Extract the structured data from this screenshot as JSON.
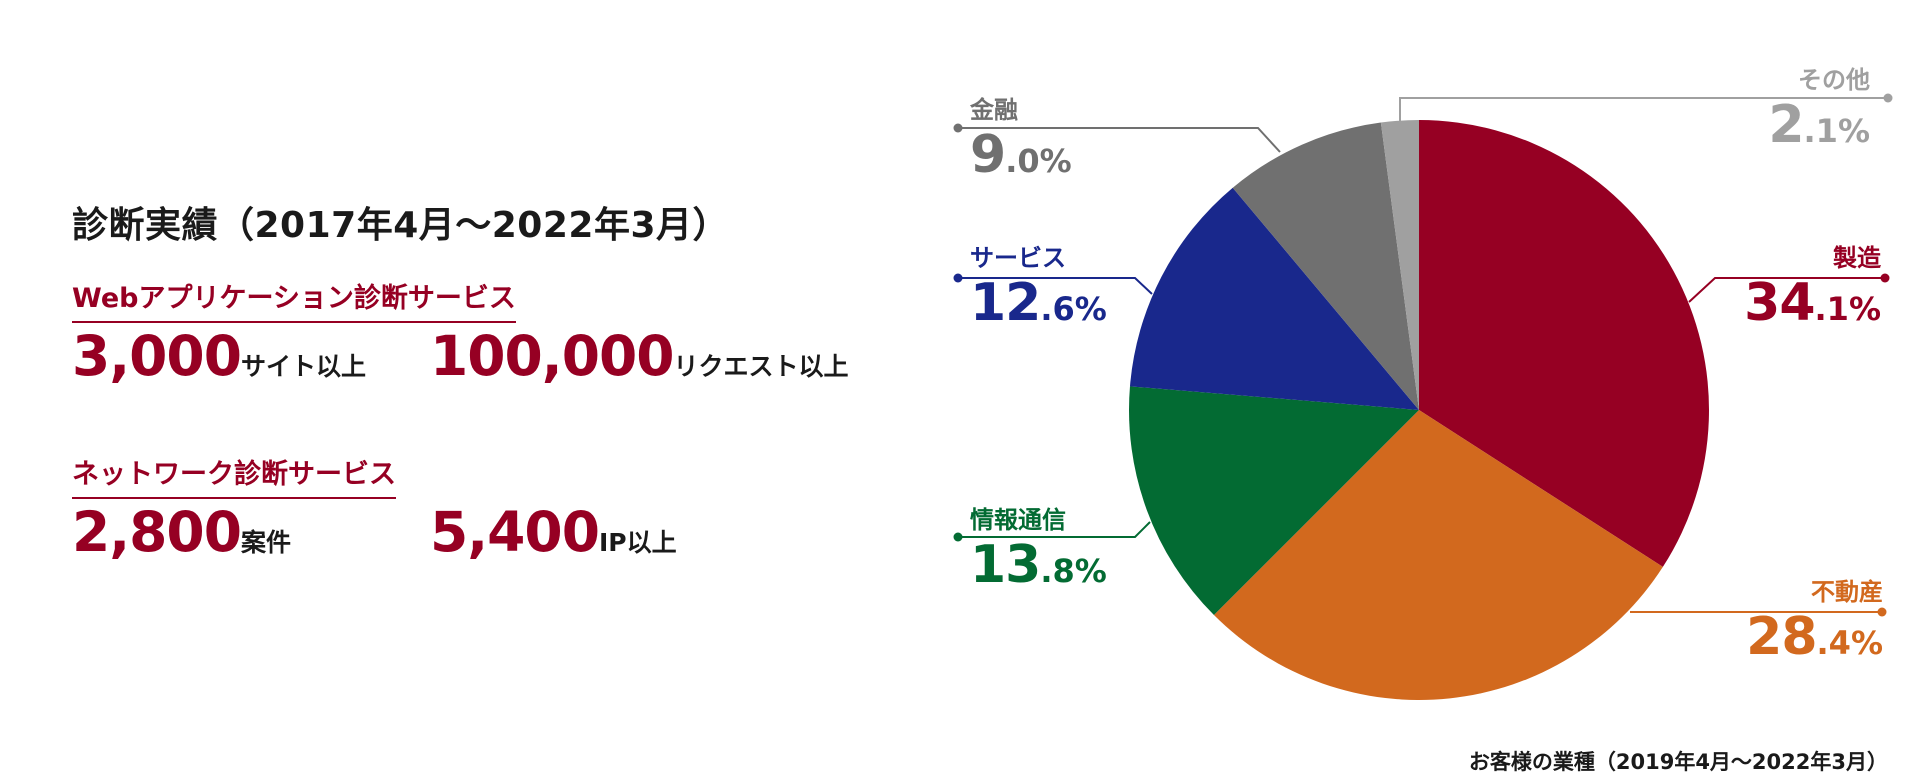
{
  "title": "診断実績（2017年4月〜2022年3月）",
  "services": [
    {
      "name": "Webアプリケーション診断サービス",
      "stats": [
        {
          "value": "3,000",
          "unit": "サイト以上"
        },
        {
          "value": "100,000",
          "unit": "リクエスト以上"
        }
      ]
    },
    {
      "name": "ネットワーク診断サービス",
      "stats": [
        {
          "value": "2,800",
          "unit": "案件"
        },
        {
          "value": "5,400",
          "unit": "IP以上"
        }
      ]
    }
  ],
  "chart_data": {
    "type": "pie",
    "title": "お客様の業種（2019年4月〜2022年3月）",
    "slices": [
      {
        "label": "製造",
        "value": 34.1,
        "pct_int": "34",
        "pct_dec": ".1%",
        "color": "#960023"
      },
      {
        "label": "不動産",
        "value": 28.4,
        "pct_int": "28",
        "pct_dec": ".4%",
        "color": "#d2691e"
      },
      {
        "label": "情報通信",
        "value": 13.8,
        "pct_int": "13",
        "pct_dec": ".8%",
        "color": "#036b33"
      },
      {
        "label": "サービス",
        "value": 12.6,
        "pct_int": "12",
        "pct_dec": ".6%",
        "color": "#19288c"
      },
      {
        "label": "金融",
        "value": 9.0,
        "pct_int": "9",
        "pct_dec": ".0%",
        "color": "#707070"
      },
      {
        "label": "その他",
        "value": 2.1,
        "pct_int": "2",
        "pct_dec": ".1%",
        "color": "#a0a0a0"
      }
    ],
    "start_angle": "12 o'clock",
    "direction": "clockwise"
  }
}
